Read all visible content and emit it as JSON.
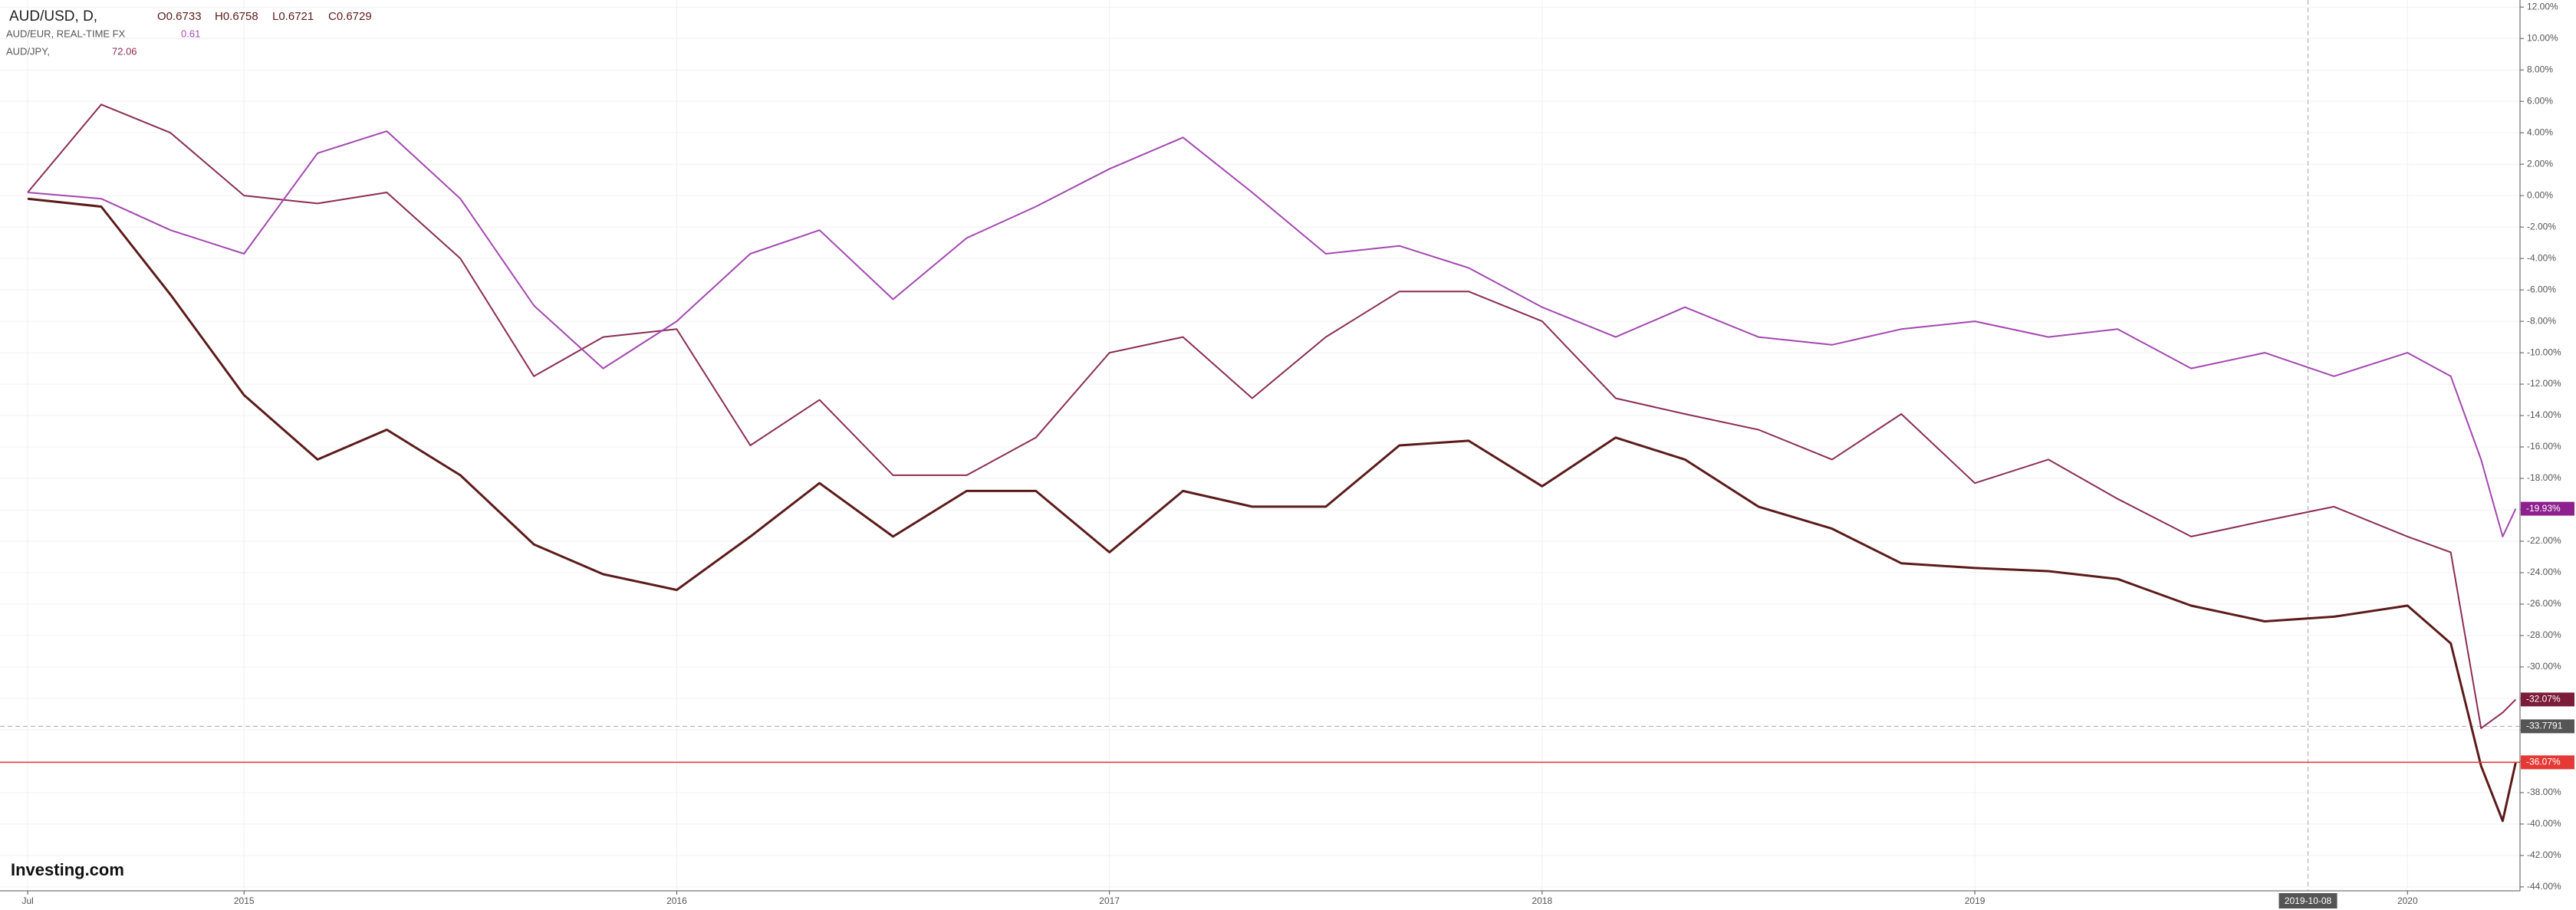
{
  "chart_data": {
    "type": "line",
    "header": {
      "main": {
        "symbol": "AUD/USD, D,",
        "open": "O0.6733",
        "high": "H0.6758",
        "low": "L0.6721",
        "close": "C0.6729"
      },
      "overlays": [
        {
          "symbol": "AUD/EUR, REAL-TIME FX",
          "value": "0.61"
        },
        {
          "symbol": "AUD/JPY,",
          "value": "72.06"
        }
      ]
    },
    "watermark": "Investing.com",
    "x": [
      2014.5,
      2014.67,
      2014.83,
      2015.0,
      2015.17,
      2015.33,
      2015.5,
      2015.67,
      2015.83,
      2016.0,
      2016.17,
      2016.33,
      2016.5,
      2016.67,
      2016.83,
      2017.0,
      2017.17,
      2017.33,
      2017.5,
      2017.67,
      2017.83,
      2018.0,
      2018.17,
      2018.33,
      2018.5,
      2018.67,
      2018.83,
      2019.0,
      2019.17,
      2019.33,
      2019.5,
      2019.67,
      2019.83,
      2020.0,
      2020.1,
      2020.17,
      2020.22,
      2020.25
    ],
    "series": [
      {
        "name": "AUD/USD",
        "color": "#5c1b1b",
        "values": [
          -0.2,
          -0.7,
          -6.3,
          -12.7,
          -16.8,
          -14.9,
          -17.8,
          -22.2,
          -24.1,
          -25.1,
          -21.7,
          -18.3,
          -21.7,
          -18.8,
          -18.8,
          -22.7,
          -18.8,
          -19.8,
          -19.8,
          -15.9,
          -15.6,
          -18.5,
          -15.4,
          -16.8,
          -19.8,
          -21.2,
          -23.4,
          -23.7,
          -23.9,
          -24.4,
          -26.1,
          -27.1,
          -26.8,
          -26.1,
          -28.5,
          -36.3,
          -39.8,
          -36.07
        ],
        "price_label": {
          "value": -36.07,
          "label": "-36.07%"
        },
        "label_color": "#e53935"
      },
      {
        "name": "AUD/EUR",
        "color": "#8b2d55",
        "values": [
          0.2,
          5.8,
          4.0,
          0.0,
          -0.5,
          0.2,
          -4.0,
          -11.5,
          -9.0,
          -8.5,
          -15.9,
          -13.0,
          -17.8,
          -17.8,
          -15.4,
          -10.0,
          -9.0,
          -12.9,
          -9.0,
          -6.1,
          -6.1,
          -8.0,
          -12.9,
          -13.9,
          -14.9,
          -16.8,
          -13.9,
          -18.3,
          -16.8,
          -19.3,
          -21.7,
          -20.7,
          -19.8,
          -21.7,
          -22.7,
          -33.9,
          -32.9,
          -32.07
        ],
        "price_label": {
          "value": -32.07,
          "label": "-32.07%"
        },
        "label_color": "#7b1c3a"
      },
      {
        "name": "AUD/JPY",
        "color": "#a348b0",
        "values": [
          0.2,
          -0.2,
          -2.2,
          -3.7,
          2.7,
          4.1,
          -0.2,
          -7.0,
          -11.0,
          -8.0,
          -3.7,
          -2.2,
          -6.6,
          -2.7,
          -0.7,
          1.7,
          3.7,
          0.2,
          -3.7,
          -3.2,
          -4.6,
          -7.1,
          -9.0,
          -7.1,
          -9.0,
          -9.5,
          -8.5,
          -8.0,
          -9.0,
          -8.5,
          -11.0,
          -10.0,
          -11.5,
          -10.0,
          -11.5,
          -16.8,
          -21.7,
          -19.93
        ],
        "price_label": {
          "value": -19.93,
          "label": "-19.93%"
        },
        "label_color": "#8e1f8e"
      }
    ],
    "crosshair": {
      "y": -33.7791,
      "x": {
        "value": 2019.77,
        "label": "2019-10-08"
      }
    },
    "xlim": [
      2014.436,
      2020.26
    ],
    "xticks": [
      {
        "value": 2014.5,
        "label": "Jul"
      },
      2015,
      2016,
      2017,
      2018,
      2019,
      2020
    ],
    "ylim": [
      12.45,
      -44.25
    ],
    "yticks": [
      {
        "value": 12,
        "label": "12.00%"
      },
      {
        "value": 10,
        "label": "10.00%"
      },
      {
        "value": 8,
        "label": "8.00%"
      },
      {
        "value": 6,
        "label": "6.00%"
      },
      {
        "value": 4,
        "label": "4.00%"
      },
      {
        "value": 2,
        "label": "2.00%"
      },
      {
        "value": 0,
        "label": "0.00%"
      },
      {
        "value": -2,
        "label": "-2.00%"
      },
      {
        "value": -4,
        "label": "-4.00%"
      },
      {
        "value": -6,
        "label": "-6.00%"
      },
      {
        "value": -8,
        "label": "-8.00%"
      },
      {
        "value": -10,
        "label": "-10.00%"
      },
      {
        "value": -12,
        "label": "-12.00%"
      },
      {
        "value": -14,
        "label": "-14.00%"
      },
      {
        "value": -16,
        "label": "-16.00%"
      },
      {
        "value": -18,
        "label": "-18.00%"
      },
      {
        "value": -20,
        "label": "-20.00%"
      },
      {
        "value": -22,
        "label": "-22.00%"
      },
      {
        "value": -24,
        "label": "-24.00%"
      },
      {
        "value": -26,
        "label": "-26.00%"
      },
      {
        "value": -28,
        "label": "-28.00%"
      },
      {
        "value": -30,
        "label": "-30.00%"
      },
      {
        "value": -32,
        "label": "-32.00%"
      },
      {
        "value": -34,
        "label": "-34.00%"
      },
      {
        "value": -36,
        "label": "-36.00%"
      },
      {
        "value": -38,
        "label": "-38.00%"
      },
      {
        "value": -40,
        "label": "-40.00%"
      },
      {
        "value": -42,
        "label": "-42.00%"
      },
      {
        "value": -44,
        "label": "-44.00%"
      }
    ],
    "grid": true
  }
}
